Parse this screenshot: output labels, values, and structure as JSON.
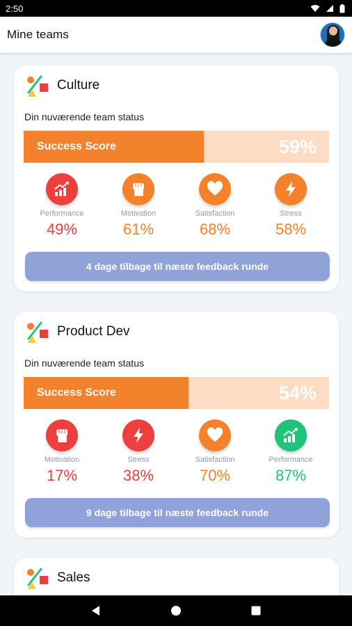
{
  "status_bar": {
    "time": "2:50"
  },
  "app_bar": {
    "title": "Mine teams"
  },
  "teams": [
    {
      "name": "Culture",
      "status_label": "Din nuværende team status",
      "score_label": "Success Score",
      "score": 59,
      "score_text": "59%",
      "metrics": [
        {
          "label": "Performance",
          "value": "49%",
          "color": "#ee3f3f",
          "icon": "chart-growth-icon"
        },
        {
          "label": "Motivation",
          "value": "61%",
          "color": "#f4822c",
          "icon": "fist-icon"
        },
        {
          "label": "Satisfaction",
          "value": "68%",
          "color": "#f4822c",
          "icon": "heart-icon"
        },
        {
          "label": "Stress",
          "value": "58%",
          "color": "#f4822c",
          "icon": "lightning-icon"
        }
      ],
      "feedback": "4 dage tilbage til næste feedback runde"
    },
    {
      "name": "Product Dev",
      "status_label": "Din nuværende team status",
      "score_label": "Success Score",
      "score": 54,
      "score_text": "54%",
      "metrics": [
        {
          "label": "Motivation",
          "value": "17%",
          "color": "#ee3f3f",
          "icon": "fist-icon"
        },
        {
          "label": "Stress",
          "value": "38%",
          "color": "#ee3f3f",
          "icon": "lightning-icon"
        },
        {
          "label": "Satisfaction",
          "value": "70%",
          "color": "#f4822c",
          "icon": "heart-icon"
        },
        {
          "label": "Performance",
          "value": "87%",
          "color": "#1fc47a",
          "icon": "chart-growth-icon"
        }
      ],
      "feedback": "9 dage tilbage til næste feedback runde"
    },
    {
      "name": "Sales"
    }
  ]
}
